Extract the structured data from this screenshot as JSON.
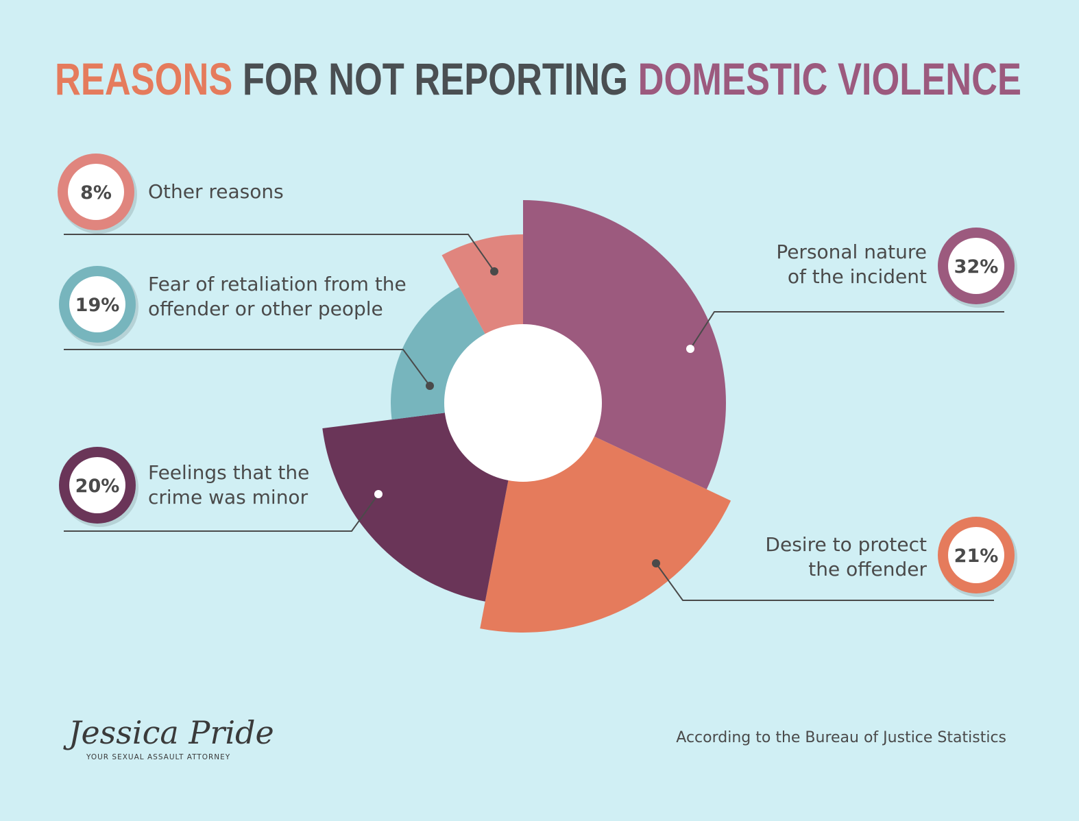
{
  "chart_data": {
    "type": "pie",
    "title": [
      "REASONS",
      "FOR NOT REPORTING",
      "DOMESTIC VIOLENCE"
    ],
    "categories": [
      "Personal nature of the incident",
      "Desire to protect the offender",
      "Feelings that the crime was minor",
      "Fear of retaliation from the offender or other people",
      "Other reasons"
    ],
    "values": [
      32,
      21,
      20,
      19,
      8
    ],
    "value_labels": [
      "32%",
      "21%",
      "20%",
      "19%",
      "8%"
    ],
    "colors": [
      "#9c5a7e",
      "#e57b5c",
      "#6a3558",
      "#77b5bd",
      "#e0857e"
    ],
    "source": "According to the Bureau of Justice Statistics"
  },
  "logo": {
    "name": "Jessica Pride",
    "tagline": "YOUR SEXUAL ASSAULT ATTORNEY"
  }
}
